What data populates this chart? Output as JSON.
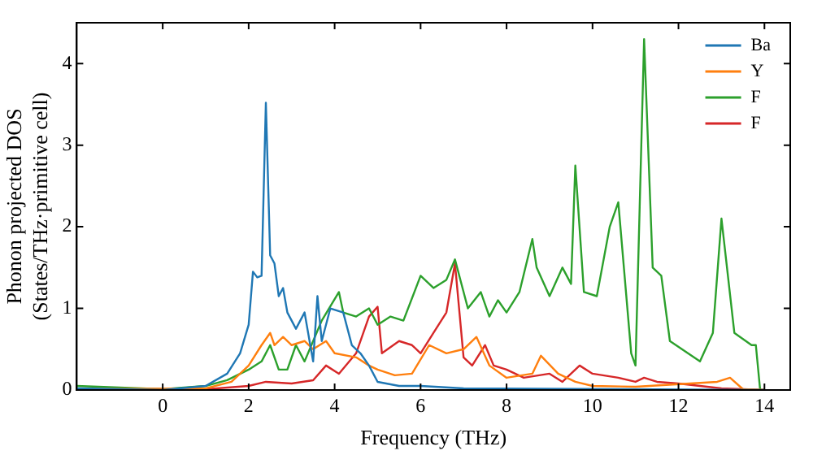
{
  "chart_data": {
    "type": "line",
    "xlabel": "Frequency (THz)",
    "ylabel": "Phonon projected DOS\n(States/THz·primitive cell)",
    "xlim": [
      -2,
      14.6
    ],
    "xticks": [
      0,
      2,
      4,
      6,
      8,
      10,
      12,
      14
    ],
    "ylim": [
      0,
      4.5
    ],
    "yticks": [
      0,
      1,
      2,
      3,
      4
    ],
    "legend": "top right",
    "grid": false,
    "marker": "none",
    "line_style": "solid",
    "series": [
      {
        "name": "Ba",
        "color": "#1f77b4",
        "x": [
          -2,
          0,
          1,
          1.5,
          1.8,
          2,
          2.1,
          2.2,
          2.3,
          2.4,
          2.5,
          2.6,
          2.7,
          2.8,
          2.9,
          3.1,
          3.3,
          3.5,
          3.6,
          3.7,
          3.9,
          4.2,
          4.4,
          4.6,
          4.8,
          5,
          5.5,
          6,
          7,
          14
        ],
        "values": [
          0.02,
          0,
          0.05,
          0.2,
          0.45,
          0.8,
          1.45,
          1.38,
          1.4,
          3.52,
          1.65,
          1.55,
          1.15,
          1.25,
          0.95,
          0.75,
          0.95,
          0.35,
          1.15,
          0.6,
          1,
          0.95,
          0.55,
          0.45,
          0.3,
          0.1,
          0.05,
          0.05,
          0.02,
          0
        ]
      },
      {
        "name": "Y",
        "color": "#ff7f0e",
        "x": [
          -2,
          1,
          1.6,
          2,
          2.3,
          2.5,
          2.6,
          2.8,
          3,
          3.3,
          3.5,
          3.8,
          4,
          4.5,
          4.8,
          5,
          5.4,
          5.8,
          6.2,
          6.6,
          7,
          7.3,
          7.6,
          8,
          8.6,
          8.8,
          9.2,
          9.6,
          10,
          11,
          12.9,
          13.2,
          13.5,
          14
        ],
        "values": [
          0.01,
          0.02,
          0.1,
          0.3,
          0.55,
          0.7,
          0.55,
          0.65,
          0.55,
          0.6,
          0.5,
          0.6,
          0.45,
          0.4,
          0.3,
          0.25,
          0.18,
          0.2,
          0.55,
          0.45,
          0.5,
          0.65,
          0.3,
          0.15,
          0.2,
          0.42,
          0.2,
          0.1,
          0.05,
          0.04,
          0.1,
          0.15,
          0.01,
          0
        ]
      },
      {
        "name": "F",
        "color": "#2ca02c",
        "x": [
          -2,
          -1,
          0,
          1,
          1.5,
          2,
          2.3,
          2.5,
          2.7,
          2.9,
          3.1,
          3.3,
          3.5,
          3.7,
          4.1,
          4.2,
          4.5,
          4.8,
          5,
          5.3,
          5.6,
          6,
          6.3,
          6.6,
          6.8,
          7.1,
          7.4,
          7.6,
          7.8,
          8,
          8.3,
          8.6,
          8.7,
          9,
          9.3,
          9.5,
          9.6,
          9.8,
          10.1,
          10.4,
          10.6,
          10.9,
          11,
          11.2,
          11.4,
          11.6,
          11.8,
          12.5,
          12.8,
          13,
          13.3,
          13.7,
          13.8,
          13.9,
          14
        ],
        "values": [
          0.05,
          0.03,
          0.01,
          0.05,
          0.12,
          0.25,
          0.35,
          0.55,
          0.25,
          0.25,
          0.55,
          0.35,
          0.6,
          0.85,
          1.2,
          0.95,
          0.9,
          1,
          0.8,
          0.9,
          0.85,
          1.4,
          1.25,
          1.35,
          1.6,
          1,
          1.2,
          0.9,
          1.1,
          0.95,
          1.2,
          1.85,
          1.5,
          1.15,
          1.5,
          1.3,
          2.75,
          1.2,
          1.15,
          2,
          2.3,
          0.45,
          0.3,
          4.3,
          1.5,
          1.4,
          0.6,
          0.35,
          0.7,
          2.1,
          0.7,
          0.55,
          0.55,
          0,
          0
        ]
      },
      {
        "name": "F",
        "color": "#d62728",
        "x": [
          -2,
          1,
          2,
          2.4,
          3,
          3.5,
          3.8,
          4.1,
          4.5,
          4.8,
          5,
          5.1,
          5.5,
          5.8,
          6,
          6.3,
          6.6,
          6.8,
          7,
          7.2,
          7.5,
          7.7,
          8,
          8.4,
          9,
          9.3,
          9.7,
          10,
          10.6,
          11,
          11.2,
          11.5,
          12,
          13,
          14
        ],
        "values": [
          0.01,
          0.01,
          0.05,
          0.1,
          0.08,
          0.12,
          0.3,
          0.2,
          0.45,
          0.9,
          1.02,
          0.45,
          0.6,
          0.55,
          0.45,
          0.7,
          0.95,
          1.55,
          0.4,
          0.3,
          0.55,
          0.3,
          0.25,
          0.15,
          0.2,
          0.1,
          0.3,
          0.2,
          0.15,
          0.1,
          0.15,
          0.1,
          0.08,
          0.02,
          0
        ]
      }
    ]
  }
}
